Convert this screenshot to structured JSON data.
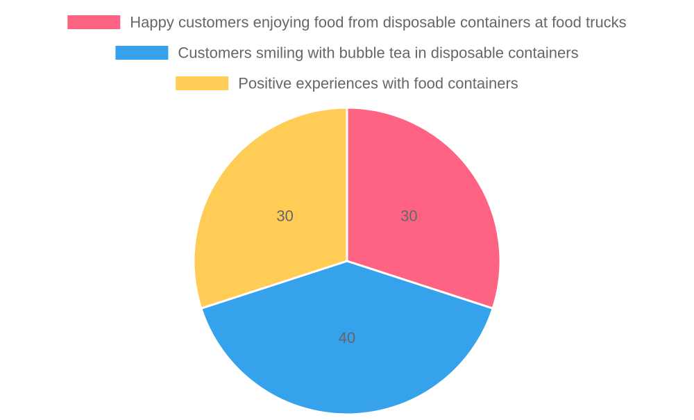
{
  "chart_data": {
    "type": "pie",
    "title": "",
    "legend_position": "top",
    "categories": [
      "Happy customers enjoying food from disposable containers at food trucks",
      "Customers smiling with bubble tea in disposable containers",
      "Positive experiences with food containers"
    ],
    "values": [
      30,
      40,
      30
    ],
    "value_labels": [
      "30",
      "40",
      "30"
    ],
    "colors": [
      "#ff6384",
      "#36a2eb",
      "#ffcd56"
    ]
  }
}
